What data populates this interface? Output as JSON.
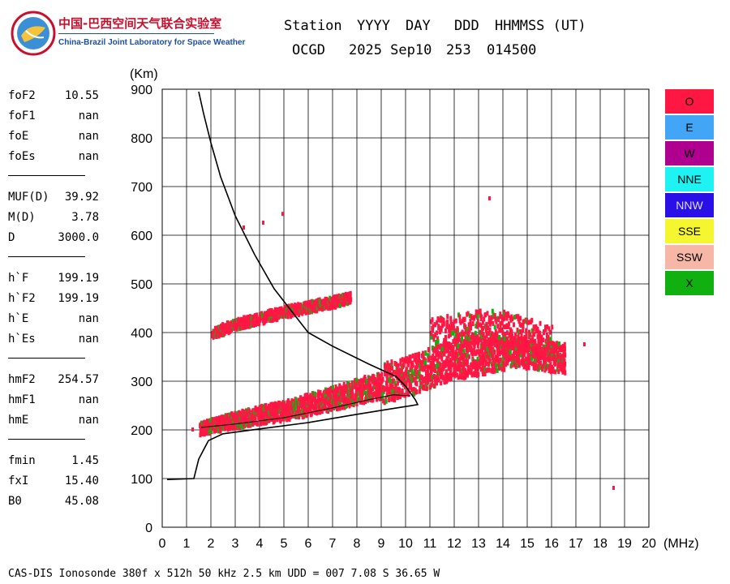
{
  "header": {
    "org_cn": "中国-巴西空间天气联合实验室",
    "org_en": "China-Brazil Joint Laboratory for Space Weather",
    "labels": [
      "Station",
      "YYYY",
      "DAY",
      "DDD",
      "HHMMSS (UT)"
    ],
    "values": [
      "OCGD",
      "2025 Sep10",
      "253",
      "014500"
    ]
  },
  "params": [
    {
      "group": [
        {
          "name": "foF2",
          "value": "10.55"
        },
        {
          "name": "foF1",
          "value": "nan"
        },
        {
          "name": "foE",
          "value": "nan"
        },
        {
          "name": "foEs",
          "value": "nan"
        }
      ]
    },
    {
      "group": [
        {
          "name": "MUF(D)",
          "value": "39.92"
        },
        {
          "name": "M(D)",
          "value": "3.78"
        },
        {
          "name": "D",
          "value": "3000.0"
        }
      ]
    },
    {
      "group": [
        {
          "name": "h`F",
          "value": "199.19"
        },
        {
          "name": "h`F2",
          "value": "199.19"
        },
        {
          "name": "h`E",
          "value": "nan"
        },
        {
          "name": "h`Es",
          "value": "nan"
        }
      ]
    },
    {
      "group": [
        {
          "name": "hmF2",
          "value": "254.57"
        },
        {
          "name": "hmF1",
          "value": "nan"
        },
        {
          "name": "hmE",
          "value": "nan"
        }
      ]
    },
    {
      "group": [
        {
          "name": "fmin",
          "value": "1.45"
        },
        {
          "name": "fxI",
          "value": "15.40"
        },
        {
          "name": "B0",
          "value": "45.08"
        }
      ]
    }
  ],
  "legend": [
    {
      "label": "O",
      "color": "#ff1744"
    },
    {
      "label": "E",
      "color": "#42a5f5"
    },
    {
      "label": "W",
      "color": "#b0008f"
    },
    {
      "label": "NNE",
      "color": "#1ef2f2"
    },
    {
      "label": "NNW",
      "color": "#2a10e6"
    },
    {
      "label": "SSE",
      "color": "#f5f530"
    },
    {
      "label": "SSW",
      "color": "#f7b7a7"
    },
    {
      "label": "X",
      "color": "#11b011"
    }
  ],
  "footer": "CAS-DIS Ionosonde 380f x 512h 50 kHz 2.5 km UDD = 007 7.08 S 36.65 W",
  "chart_data": {
    "type": "scatter",
    "xlabel": "(MHz)",
    "ylabel": "(Km)",
    "xlim": [
      0,
      20
    ],
    "ylim": [
      0,
      900
    ],
    "x_ticks": [
      0,
      1,
      2,
      3,
      4,
      5,
      6,
      7,
      8,
      9,
      10,
      11,
      12,
      13,
      14,
      15,
      16,
      17,
      18,
      19,
      20
    ],
    "y_ticks": [
      0,
      100,
      200,
      300,
      400,
      500,
      600,
      700,
      800,
      900
    ],
    "grid": true,
    "echo_colors": {
      "O": "#ff1744",
      "X": "#11b011"
    },
    "o_trace_lower": [
      [
        1.5,
        205
      ],
      [
        2,
        210
      ],
      [
        3,
        222
      ],
      [
        4,
        232
      ],
      [
        5,
        240
      ],
      [
        6,
        252
      ],
      [
        7,
        265
      ],
      [
        8,
        278
      ],
      [
        9,
        292
      ],
      [
        10,
        305
      ],
      [
        11,
        325
      ],
      [
        12,
        340
      ],
      [
        13,
        350
      ],
      [
        14,
        360
      ],
      [
        15,
        355
      ],
      [
        16,
        348
      ],
      [
        16.5,
        345
      ]
    ],
    "o_trace_upper": [
      [
        2,
        400
      ],
      [
        3,
        420
      ],
      [
        4,
        432
      ],
      [
        5,
        445
      ],
      [
        6,
        455
      ],
      [
        7,
        465
      ],
      [
        7.7,
        475
      ]
    ],
    "o_trace_spread": [
      [
        11,
        390
      ],
      [
        12,
        400
      ],
      [
        13,
        410
      ],
      [
        14,
        405
      ],
      [
        15,
        390
      ],
      [
        16,
        380
      ]
    ],
    "isolated_echoes": [
      [
        13.4,
        680
      ],
      [
        4.1,
        630
      ],
      [
        4.9,
        648
      ],
      [
        3.3,
        620
      ],
      [
        18.5,
        85
      ],
      [
        17.3,
        380
      ],
      [
        1.2,
        205
      ]
    ],
    "profile": [
      [
        1.3,
        100
      ],
      [
        0.2,
        98
      ],
      [
        1.3,
        100
      ],
      [
        1.5,
        140
      ],
      [
        1.9,
        178
      ],
      [
        2.5,
        192
      ],
      [
        4,
        202
      ],
      [
        6,
        215
      ],
      [
        8,
        232
      ],
      [
        9.5,
        244
      ],
      [
        10.5,
        252
      ],
      [
        10.4,
        262
      ],
      [
        10,
        290
      ],
      [
        9.6,
        310
      ],
      [
        8.5,
        335
      ],
      [
        7,
        372
      ],
      [
        6,
        400
      ],
      [
        5.3,
        445
      ],
      [
        4.6,
        490
      ],
      [
        3.8,
        560
      ],
      [
        3,
        640
      ],
      [
        2.4,
        720
      ],
      [
        2,
        790
      ],
      [
        1.7,
        850
      ],
      [
        1.5,
        895
      ]
    ],
    "profile_inner": [
      [
        1.6,
        205
      ],
      [
        3,
        212
      ],
      [
        5,
        225
      ],
      [
        7,
        245
      ],
      [
        8.5,
        262
      ],
      [
        9.5,
        272
      ],
      [
        10.2,
        270
      ]
    ]
  }
}
